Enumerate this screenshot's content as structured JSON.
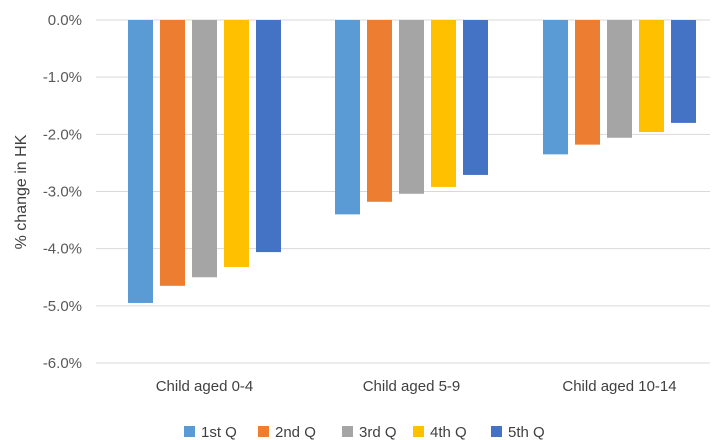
{
  "chart_data": {
    "type": "bar",
    "ylabel": "% change in HK",
    "categories": [
      "Child aged 0-4",
      "Child aged 5-9",
      "Child aged 10-14"
    ],
    "series": [
      {
        "name": "1st Q",
        "color": "#5B9BD5",
        "values": [
          -4.95,
          -3.4,
          -2.35
        ]
      },
      {
        "name": "2nd Q",
        "color": "#ED7D31",
        "values": [
          -4.65,
          -3.18,
          -2.18
        ]
      },
      {
        "name": "3rd Q",
        "color": "#A5A5A5",
        "values": [
          -4.5,
          -3.04,
          -2.06
        ]
      },
      {
        "name": "4th Q",
        "color": "#FFC000",
        "values": [
          -4.32,
          -2.92,
          -1.96
        ]
      },
      {
        "name": "5th Q",
        "color": "#4472C4",
        "values": [
          -4.06,
          -2.71,
          -1.8
        ]
      }
    ],
    "yticks": [
      "0.0%",
      "-1.0%",
      "-2.0%",
      "-3.0%",
      "-4.0%",
      "-5.0%",
      "-6.0%"
    ],
    "ylim": [
      -6,
      0
    ],
    "grid": true,
    "legend": "bottom"
  }
}
